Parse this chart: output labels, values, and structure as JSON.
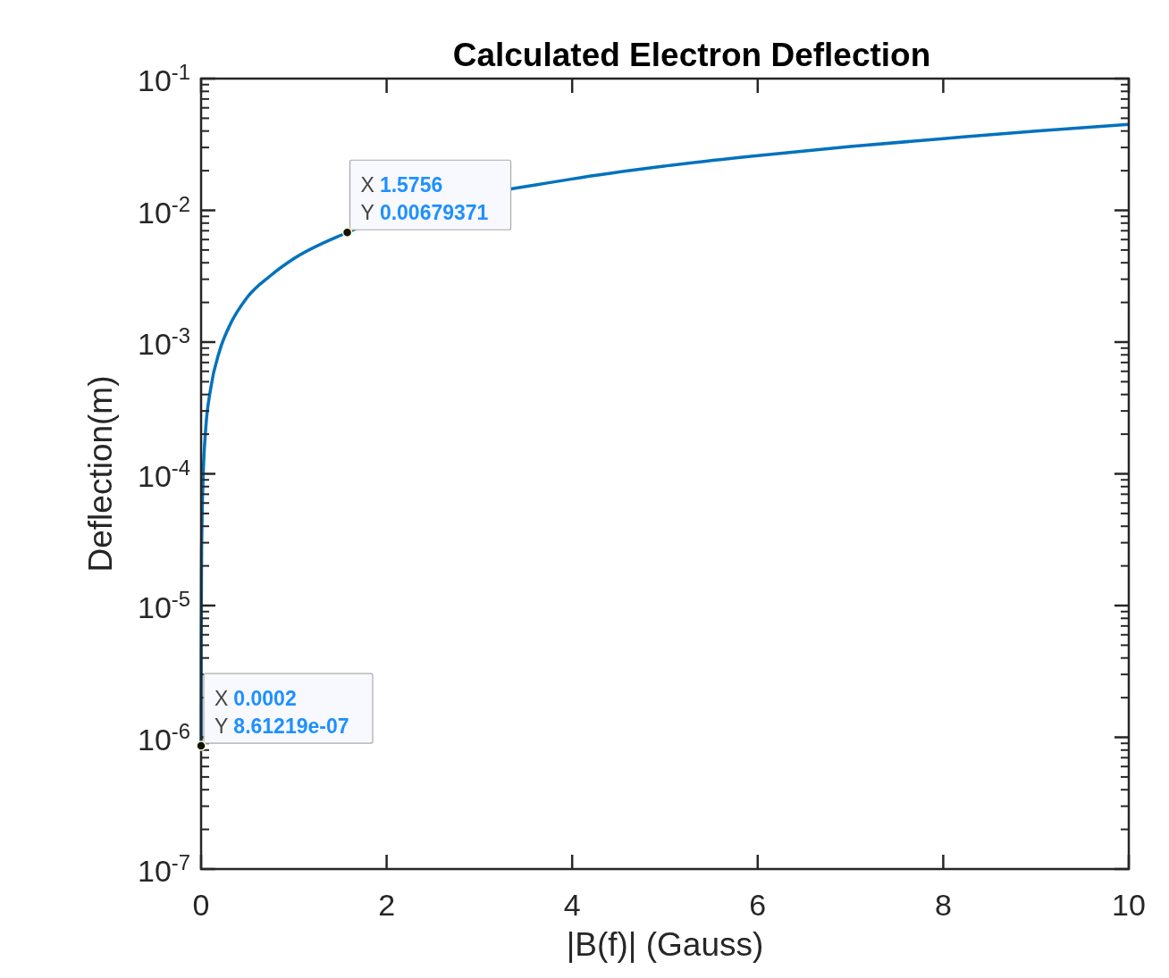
{
  "chart_data": {
    "type": "line",
    "title": "Calculated Electron Deflection",
    "xlabel": "|B(f)| (Gauss)",
    "ylabel": "Deflection(m)",
    "log": "y",
    "x": [
      0.0002,
      0.001,
      0.005,
      0.01,
      0.02,
      0.05,
      0.1,
      0.2,
      0.3,
      0.5,
      0.75,
      1,
      1.5756,
      2,
      3,
      4,
      5,
      6,
      7,
      8,
      9,
      10
    ],
    "series": [
      {
        "color": "#0072bd",
        "values": [
          8.61219e-07,
          4.3e-06,
          2.2e-05,
          4.3e-05,
          8.6e-05,
          0.00022,
          0.00043,
          0.00086,
          0.0013,
          0.0022,
          0.0032,
          0.0043,
          0.00679371,
          null,
          null,
          0.0173,
          0.0217,
          0.026,
          0.0305,
          0.035,
          0.04,
          0.045
        ]
      }
    ],
    "xlim": [
      0,
      10
    ],
    "xticks": [
      0,
      2,
      4,
      6,
      8,
      10
    ],
    "ylim": [
      1e-07,
      0.1
    ],
    "yticks": [
      {
        "value": 1e-07,
        "label": "10$^{-7}$"
      },
      {
        "value": 1e-06,
        "label": "10$^{-6}$"
      },
      {
        "value": 1e-05,
        "label": "10$^{-5}$"
      },
      {
        "value": 0.0001,
        "label": "10$^{-4}$"
      },
      {
        "value": 0.001,
        "label": "10$^{-3}$"
      },
      {
        "value": 0.01,
        "label": "10$^{-2}$"
      },
      {
        "value": 0.1,
        "label": "10$^{-1}$"
      }
    ],
    "grid": false,
    "marker": "none",
    "line_style": "solid",
    "annotations": [
      {
        "text": "X 0.0002\nY 8.61219e-07",
        "x": 0.0002,
        "y": 8.61219e-07
      },
      {
        "text": "X 1.5756\nY 0.00679371",
        "x": 1.5756,
        "y": 0.00679371
      }
    ]
  }
}
